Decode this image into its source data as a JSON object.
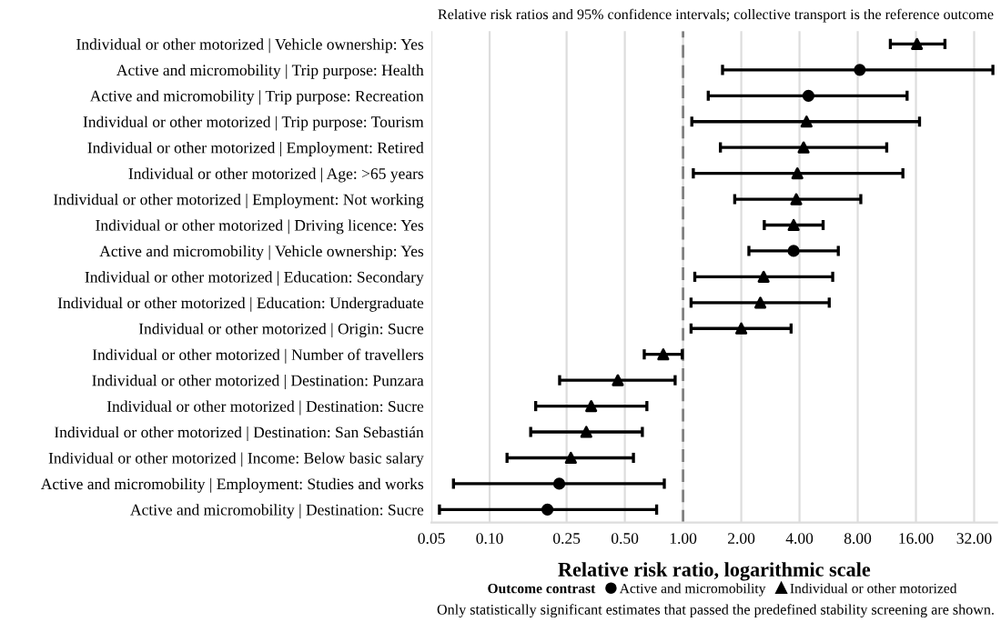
{
  "chart_data": {
    "type": "scatter",
    "title": "Relative risk ratios and 95% confidence intervals; collective transport is the reference outcome",
    "xlabel": "Relative risk ratio, logarithmic scale",
    "legend_title": "Outcome contrast",
    "annotations": [
      "Only statistically significant estimates that passed the predefined stability screening are shown."
    ],
    "categories": [
      "Individual or other motorized | Vehicle ownership: Yes",
      "Active and micromobility | Trip purpose: Health",
      "Active and micromobility | Trip purpose: Recreation",
      "Individual or other motorized | Trip purpose: Tourism",
      "Individual or other motorized | Employment: Retired",
      "Individual or other motorized | Age: >65 years",
      "Individual or other motorized | Employment: Not working",
      "Individual or other motorized | Driving licence: Yes",
      "Active and micromobility | Vehicle ownership: Yes",
      "Individual or other motorized | Education: Secondary",
      "Individual or other motorized | Education: Undergraduate",
      "Individual or other motorized | Origin: Sucre",
      "Individual or other motorized | Number of travellers",
      "Individual or other motorized | Destination: Punzara",
      "Individual or other motorized | Destination: Sucre",
      "Individual or other motorized | Destination: San Sebastián",
      "Individual or other motorized | Income: Below basic salary",
      "Active and micromobility | Employment: Studies and works",
      "Active and micromobility | Destination: Sucre"
    ],
    "orientation": "horizontal",
    "log": "x",
    "xlim": [
      0.05,
      42
    ],
    "xticks": [
      {
        "value": 0.05,
        "label": "0.05"
      },
      {
        "value": 0.1,
        "label": "0.10"
      },
      {
        "value": 0.25,
        "label": "0.25"
      },
      {
        "value": 0.5,
        "label": "0.50"
      },
      {
        "value": 1,
        "label": "1.00"
      },
      {
        "value": 2,
        "label": "2.00"
      },
      {
        "value": 4,
        "label": "4.00"
      },
      {
        "value": 8,
        "label": "8.00"
      },
      {
        "value": 16,
        "label": "16.00"
      },
      {
        "value": 32,
        "label": "32.00"
      }
    ],
    "grid": "x",
    "legend": "bottom",
    "ref_lines": [
      {
        "axis": "x",
        "value": 1,
        "label": null,
        "color": "#808080",
        "line_style": "dashed"
      }
    ],
    "series": [
      {
        "name": "Active and micromobility",
        "color": "#000000",
        "marker": "circle",
        "values": [
          null,
          8.2,
          4.45,
          null,
          null,
          null,
          null,
          null,
          3.73,
          null,
          null,
          null,
          null,
          null,
          null,
          null,
          null,
          0.229,
          0.199
        ],
        "errors": [
          null,
          [
            1.6,
            40
          ],
          [
            1.35,
            14.4
          ],
          null,
          null,
          null,
          null,
          null,
          [
            2.19,
            6.35
          ],
          null,
          null,
          null,
          null,
          null,
          null,
          null,
          null,
          [
            0.065,
            0.8
          ],
          [
            0.055,
            0.73
          ]
        ]
      },
      {
        "name": "Individual or other motorized",
        "color": "#000000",
        "marker": "triangle",
        "values": [
          16.2,
          null,
          null,
          4.35,
          4.2,
          3.9,
          3.85,
          3.73,
          null,
          2.61,
          2.51,
          2.0,
          0.79,
          0.46,
          0.335,
          0.316,
          0.263,
          null,
          null
        ],
        "errors": [
          [
            11.8,
            22.6
          ],
          null,
          null,
          [
            1.11,
            16.7
          ],
          [
            1.56,
            11.3
          ],
          [
            1.13,
            13.7
          ],
          [
            1.85,
            8.3
          ],
          [
            2.63,
            5.3
          ],
          null,
          [
            1.15,
            5.94
          ],
          [
            1.1,
            5.7
          ],
          [
            1.1,
            3.62
          ],
          [
            0.63,
            0.99
          ],
          [
            0.23,
            0.91
          ],
          [
            0.173,
            0.65
          ],
          [
            0.163,
            0.616
          ],
          [
            0.123,
            0.554
          ],
          null,
          null
        ]
      }
    ]
  }
}
